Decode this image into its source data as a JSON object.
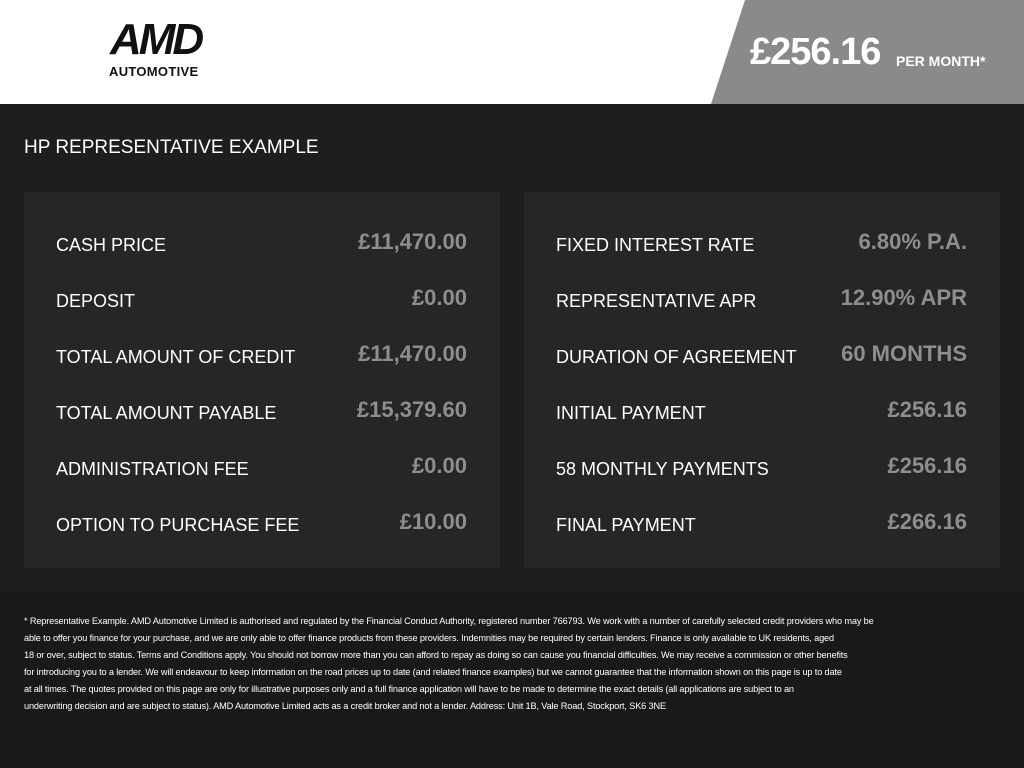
{
  "header": {
    "logo_main": "AMD",
    "logo_sub": "AUTOMOTIVE",
    "price": "£256.16",
    "price_suffix": "PER MONTH*"
  },
  "section_title": "HP REPRESENTATIVE EXAMPLE",
  "left_panel": {
    "rows": [
      [
        "CASH PRICE",
        "£11,470.00"
      ],
      [
        "DEPOSIT",
        "£0.00"
      ],
      [
        "TOTAL AMOUNT OF CREDIT",
        "£11,470.00"
      ],
      [
        "TOTAL AMOUNT PAYABLE",
        "£15,379.60"
      ],
      [
        "ADMINISTRATION FEE",
        "£0.00"
      ],
      [
        "OPTION TO PURCHASE FEE",
        "£10.00"
      ]
    ]
  },
  "right_panel": {
    "rows": [
      [
        "FIXED INTEREST RATE",
        "6.80% P.A."
      ],
      [
        "REPRESENTATIVE APR",
        "12.90% APR"
      ],
      [
        "DURATION OF AGREEMENT",
        "60 MONTHS"
      ],
      [
        "INITIAL PAYMENT",
        "£256.16"
      ],
      [
        "58 MONTHLY PAYMENTS",
        "£256.16"
      ],
      [
        "FINAL PAYMENT",
        "£266.16"
      ]
    ]
  },
  "disclaimer": {
    "lines": [
      "* Representative Example. AMD Automotive Limited is authorised and regulated by the Financial Conduct Authority, registered number 766793. We work with a number of carefully selected credit providers who may be",
      "able to offer you finance for your purchase, and we are only able to offer finance products from these providers. Indemnities may be required by certain lenders. Finance is only available to UK residents, aged",
      "18 or over, subject to status. Terms and Conditions apply. You should not borrow more than you can afford to repay as doing so can cause you financial difficulties. We may receive a commission or other benefits",
      "for introducing you to a lender. We will endeavour to keep information on the road prices up to date (and related finance examples) but we cannot guarantee that the information shown on this page is up to date",
      "at all times. The quotes provided on this page are only for illustrative purposes only and a full finance application will have to be made to determine the exact details (all applications are subject to an",
      "underwriting decision and are subject to status). AMD Automotive Limited acts as a credit broker and not a lender. Address: Unit 1B, Vale Road, Stockport, SK6 3NE"
    ]
  }
}
